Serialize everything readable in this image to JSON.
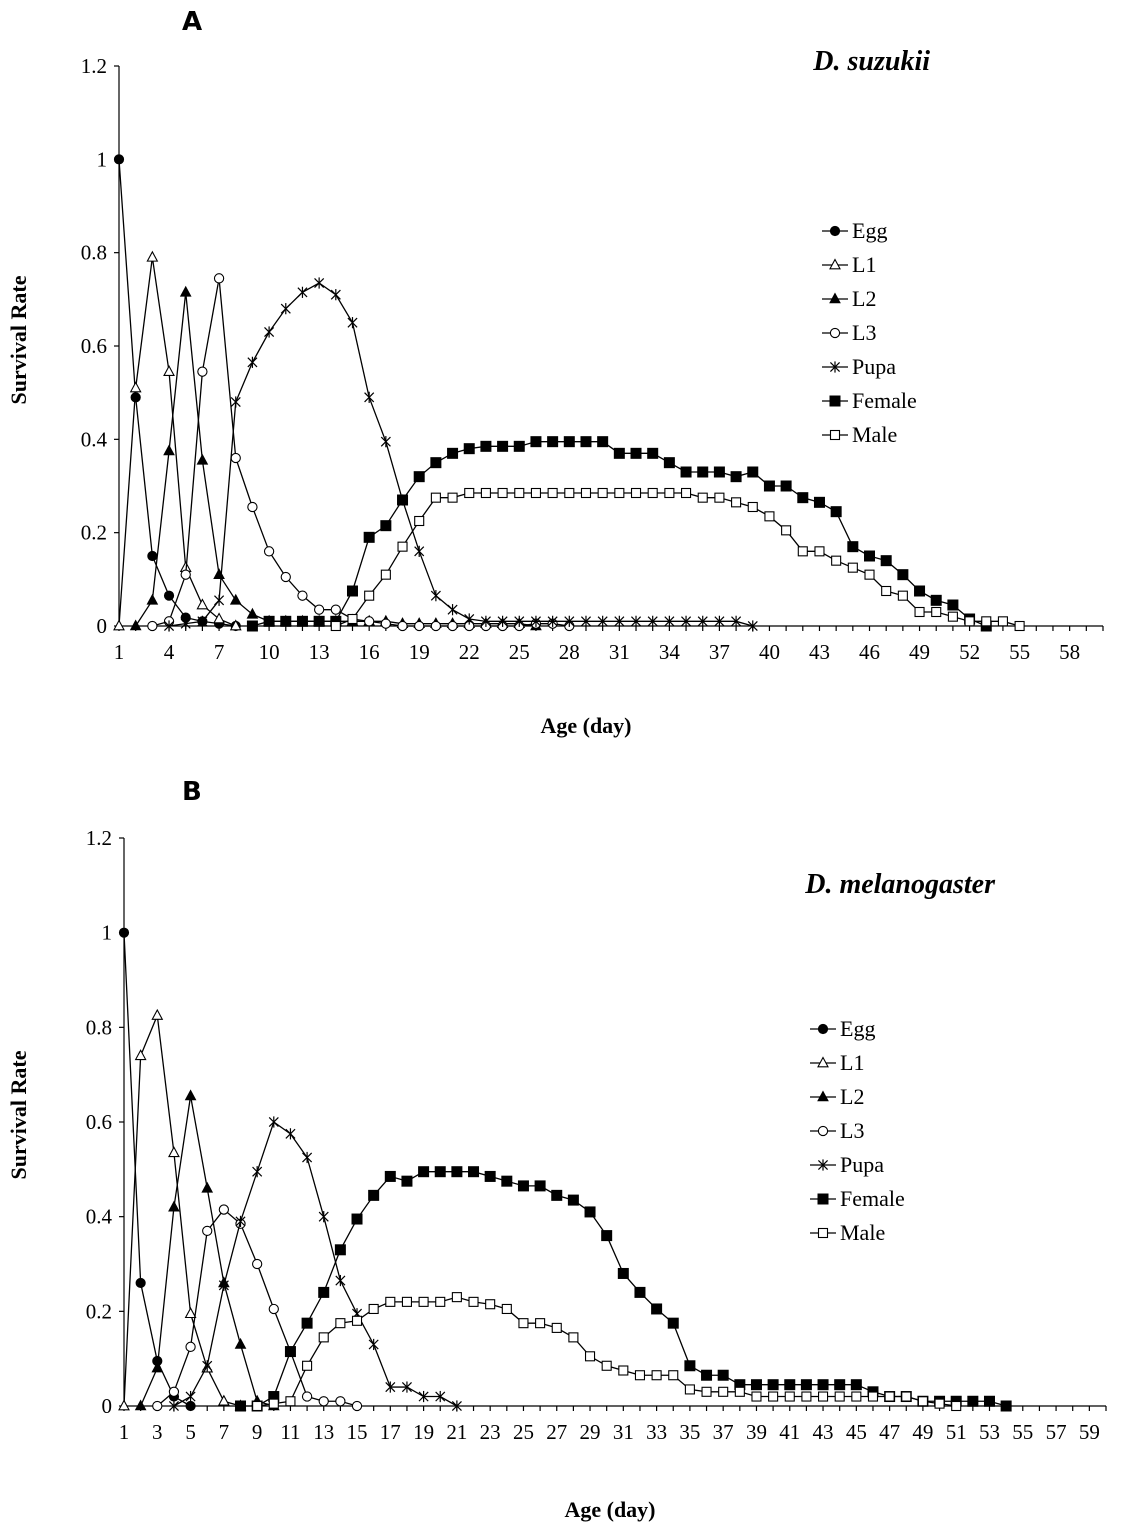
{
  "chart_data": [
    {
      "type": "line",
      "panel": "A",
      "title": "D. suzukii",
      "xlabel": "Age (day)",
      "ylabel": "Survival Rate",
      "xlim": [
        1,
        60
      ],
      "ylim": [
        0,
        1.2
      ],
      "xticks": [
        1,
        4,
        7,
        10,
        13,
        16,
        19,
        22,
        25,
        28,
        31,
        34,
        37,
        40,
        43,
        46,
        49,
        52,
        55,
        58
      ],
      "yticks": [
        0,
        0.2,
        0.4,
        0.6,
        0.8,
        1,
        1.2
      ],
      "ytick_labels": [
        "0",
        "0.2",
        "0.4",
        "0.6",
        "0.8",
        "1",
        "1.2"
      ],
      "legend_position": "right",
      "series": [
        {
          "name": "Egg",
          "marker": "circle-filled",
          "x_start": 1,
          "values": [
            1,
            0.49,
            0.15,
            0.065,
            0.018,
            0.01,
            0.005,
            0
          ]
        },
        {
          "name": "L1",
          "marker": "triangle-open",
          "x_start": 1,
          "values": [
            0,
            0.51,
            0.79,
            0.545,
            0.125,
            0.045,
            0.015,
            0
          ]
        },
        {
          "name": "L2",
          "marker": "triangle-filled",
          "x_start": 2,
          "values": [
            0,
            0.055,
            0.375,
            0.715,
            0.355,
            0.11,
            0.055,
            0.025,
            0.01,
            0.01,
            0.01,
            0.01,
            0.01,
            0.01,
            0.01,
            0.01,
            0.005,
            0.005,
            0.005,
            0.005,
            0.005,
            0.005,
            0.005,
            0.005,
            0
          ]
        },
        {
          "name": "L3",
          "marker": "circle-open",
          "x_start": 3,
          "values": [
            0,
            0.01,
            0.11,
            0.545,
            0.745,
            0.36,
            0.255,
            0.16,
            0.105,
            0.065,
            0.035,
            0.035,
            0.015,
            0.01,
            0.005,
            0,
            0,
            0,
            0,
            0,
            0,
            0,
            0,
            0.005,
            0.005,
            0
          ]
        },
        {
          "name": "Pupa",
          "marker": "star",
          "x_start": 4,
          "values": [
            0,
            0.005,
            0.01,
            0.055,
            0.48,
            0.565,
            0.63,
            0.68,
            0.715,
            0.735,
            0.71,
            0.65,
            0.49,
            0.395,
            0.27,
            0.16,
            0.065,
            0.035,
            0.015,
            0.01,
            0.01,
            0.01,
            0.01,
            0.01,
            0.01,
            0.01,
            0.01,
            0.01,
            0.01,
            0.01,
            0.01,
            0.01,
            0.01,
            0.01,
            0.01,
            0
          ]
        },
        {
          "name": "Female",
          "marker": "square-filled",
          "x_start": 9,
          "values": [
            0,
            0.01,
            0.01,
            0.01,
            0.01,
            0.01,
            0.075,
            0.19,
            0.215,
            0.27,
            0.32,
            0.35,
            0.37,
            0.38,
            0.385,
            0.385,
            0.385,
            0.395,
            0.395,
            0.395,
            0.395,
            0.395,
            0.37,
            0.37,
            0.37,
            0.35,
            0.33,
            0.33,
            0.33,
            0.32,
            0.33,
            0.3,
            0.3,
            0.275,
            0.265,
            0.245,
            0.17,
            0.15,
            0.14,
            0.11,
            0.075,
            0.055,
            0.045,
            0.015,
            0
          ]
        },
        {
          "name": "Male",
          "marker": "square-open",
          "x_start": 14,
          "values": [
            0,
            0.015,
            0.065,
            0.11,
            0.17,
            0.225,
            0.275,
            0.275,
            0.285,
            0.285,
            0.285,
            0.285,
            0.285,
            0.285,
            0.285,
            0.285,
            0.285,
            0.285,
            0.285,
            0.285,
            0.285,
            0.285,
            0.275,
            0.275,
            0.265,
            0.255,
            0.235,
            0.205,
            0.16,
            0.16,
            0.14,
            0.125,
            0.11,
            0.075,
            0.065,
            0.03,
            0.03,
            0.02,
            0.01,
            0.01,
            0.01,
            0
          ]
        }
      ]
    },
    {
      "type": "line",
      "panel": "B",
      "title": "D. melanogaster",
      "xlabel": "Age (day)",
      "ylabel": "Survival Rate",
      "xlim": [
        1,
        60
      ],
      "ylim": [
        0,
        1.2
      ],
      "xticks": [
        1,
        3,
        5,
        7,
        9,
        11,
        13,
        15,
        17,
        19,
        21,
        23,
        25,
        27,
        29,
        31,
        33,
        35,
        37,
        39,
        41,
        43,
        45,
        47,
        49,
        51,
        53,
        55,
        57,
        59
      ],
      "yticks": [
        0,
        0.2,
        0.4,
        0.6,
        0.8,
        1,
        1.2
      ],
      "ytick_labels": [
        "0",
        "0.2",
        "0.4",
        "0.6",
        "0.8",
        "1",
        "1.2"
      ],
      "legend_position": "right",
      "series": [
        {
          "name": "Egg",
          "marker": "circle-filled",
          "x_start": 1,
          "values": [
            1,
            0.26,
            0.095,
            0.02,
            0
          ]
        },
        {
          "name": "L1",
          "marker": "triangle-open",
          "x_start": 1,
          "values": [
            0,
            0.74,
            0.825,
            0.535,
            0.195,
            0.08,
            0.01,
            0
          ]
        },
        {
          "name": "L2",
          "marker": "triangle-filled",
          "x_start": 2,
          "values": [
            0,
            0.08,
            0.42,
            0.655,
            0.46,
            0.26,
            0.13,
            0.01,
            0
          ]
        },
        {
          "name": "L3",
          "marker": "circle-open",
          "x_start": 3,
          "values": [
            0,
            0.03,
            0.125,
            0.37,
            0.415,
            0.385,
            0.3,
            0.205,
            0.115,
            0.02,
            0.01,
            0.01,
            0
          ]
        },
        {
          "name": "Pupa",
          "marker": "star",
          "x_start": 4,
          "values": [
            0,
            0.02,
            0.085,
            0.255,
            0.39,
            0.495,
            0.6,
            0.575,
            0.525,
            0.4,
            0.265,
            0.195,
            0.13,
            0.04,
            0.04,
            0.02,
            0.02,
            0
          ]
        },
        {
          "name": "Female",
          "marker": "square-filled",
          "x_start": 8,
          "values": [
            0,
            0,
            0.02,
            0.115,
            0.175,
            0.24,
            0.33,
            0.395,
            0.445,
            0.485,
            0.475,
            0.495,
            0.495,
            0.495,
            0.495,
            0.485,
            0.475,
            0.465,
            0.465,
            0.445,
            0.435,
            0.41,
            0.36,
            0.28,
            0.24,
            0.205,
            0.175,
            0.085,
            0.065,
            0.065,
            0.045,
            0.045,
            0.045,
            0.045,
            0.045,
            0.045,
            0.045,
            0.045,
            0.03,
            0.02,
            0.02,
            0.01,
            0.01,
            0.01,
            0.01,
            0.01,
            0
          ]
        },
        {
          "name": "Male",
          "marker": "square-open",
          "x_start": 9,
          "values": [
            0,
            0.005,
            0.01,
            0.085,
            0.145,
            0.175,
            0.18,
            0.205,
            0.22,
            0.22,
            0.22,
            0.22,
            0.23,
            0.22,
            0.215,
            0.205,
            0.175,
            0.175,
            0.165,
            0.145,
            0.105,
            0.085,
            0.075,
            0.065,
            0.065,
            0.065,
            0.035,
            0.03,
            0.03,
            0.03,
            0.02,
            0.02,
            0.02,
            0.02,
            0.02,
            0.02,
            0.02,
            0.02,
            0.02,
            0.02,
            0.01,
            0.005,
            0
          ]
        }
      ]
    }
  ]
}
